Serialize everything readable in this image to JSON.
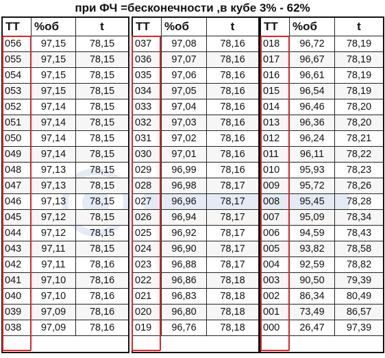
{
  "title": "при ФЧ =бесконечности ,в кубе 3% - 62%",
  "headers": [
    "ТТ",
    "%об",
    "t"
  ],
  "columns": [
    {
      "rows": [
        [
          "056",
          "97,15",
          "78,15"
        ],
        [
          "055",
          "97,15",
          "78,15"
        ],
        [
          "054",
          "97,15",
          "78,15"
        ],
        [
          "053",
          "97,15",
          "78,15"
        ],
        [
          "052",
          "97,14",
          "78,15"
        ],
        [
          "051",
          "97,14",
          "78,15"
        ],
        [
          "050",
          "97,14",
          "78,15"
        ],
        [
          "049",
          "97,14",
          "78,15"
        ],
        [
          "048",
          "97,13",
          "78,15"
        ],
        [
          "047",
          "97,13",
          "78,15"
        ],
        [
          "046",
          "97,13",
          "78,15"
        ],
        [
          "045",
          "97,12",
          "78,15"
        ],
        [
          "044",
          "97,12",
          "78,15"
        ],
        [
          "043",
          "97,11",
          "78,15"
        ],
        [
          "042",
          "97,11",
          "78,16"
        ],
        [
          "041",
          "97,10",
          "78,16"
        ],
        [
          "040",
          "97,10",
          "78,16"
        ],
        [
          "039",
          "97,09",
          "78,16"
        ],
        [
          "038",
          "97,09",
          "78,16"
        ]
      ]
    },
    {
      "rows": [
        [
          "037",
          "97,08",
          "78,16"
        ],
        [
          "036",
          "97,07",
          "78,16"
        ],
        [
          "035",
          "97,06",
          "78,16"
        ],
        [
          "034",
          "97,05",
          "78,16"
        ],
        [
          "033",
          "97,04",
          "78,16"
        ],
        [
          "032",
          "97,03",
          "78,16"
        ],
        [
          "031",
          "97,02",
          "78,16"
        ],
        [
          "030",
          "97,01",
          "78,16"
        ],
        [
          "029",
          "96,99",
          "78,16"
        ],
        [
          "028",
          "96,98",
          "78,17"
        ],
        [
          "027",
          "96,96",
          "78,17"
        ],
        [
          "026",
          "96,94",
          "78,17"
        ],
        [
          "025",
          "96,92",
          "78,17"
        ],
        [
          "024",
          "96,90",
          "78,17"
        ],
        [
          "023",
          "96,88",
          "78,17"
        ],
        [
          "022",
          "96,86",
          "78,18"
        ],
        [
          "021",
          "96,83",
          "78,18"
        ],
        [
          "020",
          "96,80",
          "78,18"
        ],
        [
          "019",
          "96,76",
          "78,18"
        ]
      ]
    },
    {
      "rows": [
        [
          "018",
          "96,72",
          "78,19"
        ],
        [
          "017",
          "96,67",
          "78,19"
        ],
        [
          "016",
          "96,61",
          "78,19"
        ],
        [
          "015",
          "96,54",
          "78,19"
        ],
        [
          "014",
          "96,46",
          "78,20"
        ],
        [
          "013",
          "96,36",
          "78,20"
        ],
        [
          "012",
          "96,24",
          "78,21"
        ],
        [
          "011",
          "96,11",
          "78,22"
        ],
        [
          "010",
          "95,93",
          "78,23"
        ],
        [
          "009",
          "95,72",
          "78,26"
        ],
        [
          "008",
          "95,45",
          "78,28"
        ],
        [
          "007",
          "95,09",
          "78,34"
        ],
        [
          "006",
          "94,59",
          "78,43"
        ],
        [
          "005",
          "93,82",
          "78,58"
        ],
        [
          "004",
          "92,59",
          "78,82"
        ],
        [
          "003",
          "90,50",
          "79,39"
        ],
        [
          "002",
          "86,34",
          "80,49"
        ],
        [
          "001",
          "73,49",
          "86,57"
        ],
        [
          "000",
          "26,47",
          "97,39"
        ]
      ]
    }
  ],
  "colors": {
    "highlight": "#d9242b",
    "grid": "#222222",
    "frame": "#111111"
  }
}
